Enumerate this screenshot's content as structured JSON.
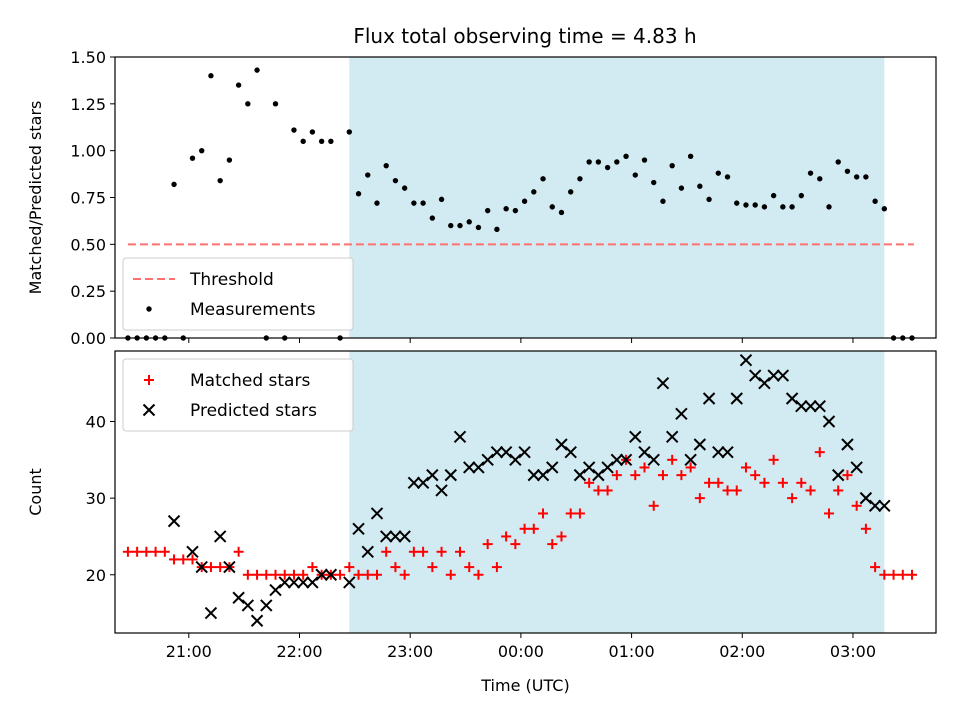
{
  "title": "Flux total observing time = 4.83 h",
  "colors": {
    "shade": "#add8e6",
    "threshold": "#ff7070",
    "matched": "#ff0000",
    "predicted": "#000000",
    "measurement": "#000000"
  },
  "chart_data": [
    {
      "type": "scatter",
      "panel": "top",
      "ylabel": "Matched/Predicted stars",
      "xlabel": "",
      "xlim": [
        "20:20",
        "03:45"
      ],
      "ylim": [
        0,
        1.5
      ],
      "yticks": [
        "0.00",
        "0.25",
        "0.50",
        "0.75",
        "1.00",
        "1.25",
        "1.50"
      ],
      "shaded_span": [
        "22:27",
        "03:17"
      ],
      "grid": false,
      "legend_position": "lower-left",
      "threshold": {
        "name": "Threshold",
        "value": 0.5,
        "x_range": [
          "20:27",
          "03:33"
        ],
        "style": "dashed"
      },
      "series": [
        {
          "name": "Measurements",
          "marker": "dot",
          "x": [
            "20:27",
            "20:32",
            "20:37",
            "20:42",
            "20:47",
            "20:52",
            "20:57",
            "21:02",
            "21:07",
            "21:12",
            "21:17",
            "21:22",
            "21:27",
            "21:32",
            "21:37",
            "21:42",
            "21:47",
            "21:52",
            "21:57",
            "22:02",
            "22:07",
            "22:12",
            "22:17",
            "22:22",
            "22:27",
            "22:32",
            "22:37",
            "22:42",
            "22:47",
            "22:52",
            "22:57",
            "23:02",
            "23:07",
            "23:12",
            "23:17",
            "23:22",
            "23:27",
            "23:32",
            "23:37",
            "23:42",
            "23:47",
            "23:52",
            "23:57",
            "00:02",
            "00:07",
            "00:12",
            "00:17",
            "00:22",
            "00:27",
            "00:32",
            "00:37",
            "00:42",
            "00:47",
            "00:52",
            "00:57",
            "01:02",
            "01:07",
            "01:12",
            "01:17",
            "01:22",
            "01:27",
            "01:32",
            "01:37",
            "01:42",
            "01:47",
            "01:52",
            "01:57",
            "02:02",
            "02:07",
            "02:12",
            "02:17",
            "02:22",
            "02:27",
            "02:32",
            "02:37",
            "02:42",
            "02:47",
            "02:52",
            "02:57",
            "03:02",
            "03:07",
            "03:12",
            "03:17",
            "03:22",
            "03:27",
            "03:32"
          ],
          "y": [
            0,
            0,
            0,
            0,
            0,
            0.82,
            0,
            0.96,
            1.0,
            1.4,
            0.84,
            0.95,
            1.35,
            1.25,
            1.43,
            0,
            1.25,
            0,
            1.11,
            1.05,
            1.1,
            1.05,
            1.05,
            0,
            1.1,
            0.77,
            0.87,
            0.72,
            0.92,
            0.84,
            0.8,
            0.72,
            0.72,
            0.64,
            0.74,
            0.6,
            0.6,
            0.62,
            0.59,
            0.68,
            0.58,
            0.69,
            0.68,
            0.73,
            0.78,
            0.85,
            0.7,
            0.67,
            0.78,
            0.85,
            0.94,
            0.94,
            0.91,
            0.94,
            0.97,
            0.87,
            0.95,
            0.83,
            0.73,
            0.92,
            0.8,
            0.97,
            0.81,
            0.74,
            0.88,
            0.86,
            0.72,
            0.71,
            0.71,
            0.7,
            0.76,
            0.7,
            0.7,
            0.76,
            0.88,
            0.85,
            0.7,
            0.94,
            0.89,
            0.86,
            0.86,
            0.73,
            0.69,
            0,
            0,
            0
          ]
        }
      ]
    },
    {
      "type": "scatter",
      "panel": "bottom",
      "ylabel": "Count",
      "xlabel": "Time (UTC)",
      "xlim": [
        "20:20",
        "03:45"
      ],
      "ylim": [
        12.4,
        49.2
      ],
      "yticks": [
        "20",
        "30",
        "40"
      ],
      "xticks": [
        "21:00",
        "22:00",
        "23:00",
        "00:00",
        "01:00",
        "02:00",
        "03:00"
      ],
      "shaded_span": [
        "22:27",
        "03:17"
      ],
      "grid": false,
      "legend_position": "upper-left",
      "series": [
        {
          "name": "Matched stars",
          "marker": "plus",
          "x": [
            "20:27",
            "20:32",
            "20:37",
            "20:42",
            "20:47",
            "20:52",
            "20:57",
            "21:02",
            "21:07",
            "21:12",
            "21:17",
            "21:22",
            "21:27",
            "21:32",
            "21:37",
            "21:42",
            "21:47",
            "21:52",
            "21:57",
            "22:02",
            "22:07",
            "22:12",
            "22:17",
            "22:22",
            "22:27",
            "22:32",
            "22:37",
            "22:42",
            "22:47",
            "22:52",
            "22:57",
            "23:02",
            "23:07",
            "23:12",
            "23:17",
            "23:22",
            "23:27",
            "23:32",
            "23:37",
            "23:42",
            "23:47",
            "23:52",
            "23:57",
            "00:02",
            "00:07",
            "00:12",
            "00:17",
            "00:22",
            "00:27",
            "00:32",
            "00:37",
            "00:42",
            "00:47",
            "00:52",
            "00:57",
            "01:02",
            "01:07",
            "01:12",
            "01:17",
            "01:22",
            "01:27",
            "01:32",
            "01:37",
            "01:42",
            "01:47",
            "01:52",
            "01:57",
            "02:02",
            "02:07",
            "02:12",
            "02:17",
            "02:22",
            "02:27",
            "02:32",
            "02:37",
            "02:42",
            "02:47",
            "02:52",
            "02:57",
            "03:02",
            "03:07",
            "03:12",
            "03:17",
            "03:22",
            "03:27",
            "03:32"
          ],
          "y": [
            23,
            23,
            23,
            23,
            23,
            22,
            22,
            22,
            21,
            21,
            21,
            21,
            23,
            20,
            20,
            20,
            20,
            20,
            20,
            20,
            21,
            20,
            20,
            20,
            21,
            20,
            20,
            20,
            23,
            21,
            20,
            23,
            23,
            21,
            23,
            20,
            23,
            21,
            20,
            24,
            21,
            25,
            24,
            26,
            26,
            28,
            24,
            25,
            28,
            28,
            32,
            31,
            31,
            33,
            35,
            33,
            34,
            29,
            33,
            35,
            33,
            34,
            30,
            32,
            32,
            31,
            31,
            34,
            33,
            32,
            35,
            32,
            30,
            32,
            31,
            36,
            28,
            31,
            33,
            29,
            26,
            21,
            20,
            20,
            20,
            20
          ]
        },
        {
          "name": "Predicted stars",
          "marker": "x",
          "x": [
            "20:52",
            "21:02",
            "21:07",
            "21:12",
            "21:17",
            "21:22",
            "21:27",
            "21:32",
            "21:37",
            "21:42",
            "21:47",
            "21:52",
            "21:57",
            "22:02",
            "22:07",
            "22:12",
            "22:17",
            "22:27",
            "22:32",
            "22:37",
            "22:42",
            "22:47",
            "22:52",
            "22:57",
            "23:02",
            "23:07",
            "23:12",
            "23:17",
            "23:22",
            "23:27",
            "23:32",
            "23:37",
            "23:42",
            "23:47",
            "23:52",
            "23:57",
            "00:02",
            "00:07",
            "00:12",
            "00:17",
            "00:22",
            "00:27",
            "00:32",
            "00:37",
            "00:42",
            "00:47",
            "00:52",
            "00:57",
            "01:02",
            "01:07",
            "01:12",
            "01:17",
            "01:22",
            "01:27",
            "01:32",
            "01:37",
            "01:42",
            "01:47",
            "01:52",
            "01:57",
            "02:02",
            "02:07",
            "02:12",
            "02:17",
            "02:22",
            "02:27",
            "02:32",
            "02:37",
            "02:42",
            "02:47",
            "02:52",
            "02:57",
            "03:02",
            "03:07",
            "03:12",
            "03:17"
          ],
          "y": [
            27,
            23,
            21,
            15,
            25,
            21,
            17,
            16,
            14,
            16,
            18,
            19,
            19,
            19,
            19,
            20,
            20,
            19,
            26,
            23,
            28,
            25,
            25,
            25,
            32,
            32,
            33,
            31,
            33,
            38,
            34,
            34,
            35,
            36,
            36,
            35,
            36,
            33,
            33,
            34,
            37,
            36,
            33,
            34,
            33,
            34,
            35,
            35,
            38,
            36,
            35,
            45,
            38,
            41,
            35,
            37,
            43,
            36,
            36,
            43,
            48,
            46,
            45,
            46,
            46,
            43,
            42,
            42,
            42,
            40,
            33,
            37,
            34,
            30,
            29,
            29
          ]
        }
      ]
    }
  ]
}
